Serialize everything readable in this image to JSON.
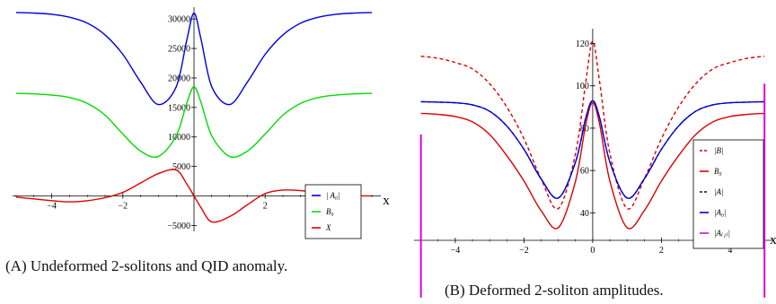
{
  "captions": {
    "a_letter": "(A)",
    "a_text": "Undeformed 2-solitons and QID anomaly.",
    "b_letter": "(B)",
    "b_text": "Deformed 2-soliton amplitudes."
  },
  "chart_data": [
    {
      "id": "A",
      "type": "line",
      "title": "",
      "xlabel": "x",
      "ylabel": "",
      "xlim": [
        -5.1,
        5.1
      ],
      "ylim": [
        -6000,
        32000
      ],
      "xticks": [
        -4,
        -2,
        0,
        2,
        4
      ],
      "yticks": [
        -5000,
        5000,
        10000,
        15000,
        20000,
        25000,
        30000
      ],
      "x_tick_labels": [
        "−4",
        "−2",
        "",
        "2",
        "4"
      ],
      "y_tick_labels": [
        "−5000",
        "5000",
        "10000",
        "15000",
        "20000",
        "25000",
        "30000"
      ],
      "grid": false,
      "legend_position": "lower-right",
      "x": [
        -5,
        -4.5,
        -4,
        -3.5,
        -3,
        -2.5,
        -2,
        -1.5,
        -1,
        -0.5,
        -0.2,
        0,
        0.2,
        0.5,
        1,
        1.5,
        2,
        2.5,
        3,
        3.5,
        4,
        4.5,
        5
      ],
      "series": [
        {
          "name": "|A_0|",
          "legend_label": "| A₀|",
          "color": "#0000e0",
          "dash": "solid",
          "values": [
            31100,
            31000,
            30800,
            30300,
            29300,
            27300,
            24000,
            19300,
            15500,
            18500,
            26500,
            31000,
            26500,
            18500,
            15500,
            19300,
            24000,
            27300,
            29300,
            30300,
            30800,
            31000,
            31100
          ]
        },
        {
          "name": "B_0",
          "legend_label": "B₀",
          "color": "#00dc00",
          "dash": "solid",
          "values": [
            17400,
            17300,
            17100,
            16700,
            15700,
            13700,
            10500,
            7600,
            6700,
            10200,
            15800,
            18500,
            15800,
            10200,
            6700,
            7600,
            10500,
            13700,
            15700,
            16700,
            17100,
            17300,
            17400
          ]
        },
        {
          "name": "X",
          "legend_label": "X",
          "color": "#e00000",
          "dash": "solid",
          "values": [
            -200,
            -500,
            -800,
            -1000,
            -800,
            -300,
            600,
            2200,
            3800,
            4400,
            2000,
            0,
            -2000,
            -4400,
            -3500,
            -1500,
            400,
            1000,
            900,
            500,
            200,
            50,
            0
          ]
        }
      ]
    },
    {
      "id": "B",
      "type": "line",
      "title": "",
      "xlabel": "x",
      "ylabel": "",
      "xlim": [
        -5.2,
        5.1
      ],
      "ylim": [
        27,
        127
      ],
      "xticks": [
        -4,
        -2,
        0,
        2,
        4
      ],
      "yticks": [
        40,
        60,
        80,
        100,
        120
      ],
      "x_tick_labels": [
        "−4",
        "−2",
        "0",
        "2",
        "4"
      ],
      "y_tick_labels": [
        "40",
        "60",
        "80",
        "100",
        "120"
      ],
      "grid": false,
      "legend_position": "right",
      "x": [
        -5,
        -4.5,
        -4,
        -3.5,
        -3,
        -2.5,
        -2,
        -1.5,
        -1,
        -0.5,
        -0.2,
        0,
        0.2,
        0.5,
        1,
        1.5,
        2,
        2.5,
        3,
        3.5,
        4,
        4.5,
        5
      ],
      "series": [
        {
          "name": "|B|",
          "legend_label": "|B|",
          "color": "#dc0000",
          "dash": "dashed",
          "values": [
            114,
            113,
            111,
            108,
            101,
            90,
            75,
            56,
            42,
            68,
            102,
            121,
            102,
            68,
            42,
            56,
            75,
            90,
            101,
            108,
            111,
            113,
            114
          ]
        },
        {
          "name": "B_0",
          "legend_label": "B₀",
          "color": "#dc0000",
          "dash": "solid",
          "values": [
            87,
            86.5,
            85.5,
            83,
            77,
            67,
            55,
            41,
            33,
            55,
            82,
            92,
            82,
            55,
            33,
            41,
            55,
            67,
            77,
            83,
            85.5,
            86.5,
            87
          ]
        },
        {
          "name": "|A|",
          "legend_label": "|A|",
          "color": "#0000d0",
          "dash": "dashed",
          "values": [
            92.5,
            92.3,
            92,
            91,
            88,
            81,
            70,
            56,
            47,
            64,
            85,
            93,
            85,
            64,
            47,
            56,
            70,
            81,
            88,
            91,
            92,
            92.3,
            92.5
          ]
        },
        {
          "name": "|A_0|",
          "legend_label": "|A₀|",
          "color": "#0000d0",
          "dash": "solid",
          "values": [
            92.5,
            92.3,
            92,
            91,
            88,
            81,
            70,
            56,
            47,
            64,
            85,
            93,
            85,
            64,
            47,
            56,
            70,
            81,
            88,
            91,
            92,
            92.3,
            92.5
          ]
        },
        {
          "name": "|A_(1)|",
          "legend_label": "|A₍₁₎|",
          "color": "#e000e0",
          "dash": "solid",
          "segments": [
            [
              [
                -5,
                0
              ],
              [
                -5,
                77
              ]
            ],
            [
              [
                5,
                0
              ],
              [
                5,
                101
              ]
            ]
          ]
        }
      ]
    }
  ]
}
